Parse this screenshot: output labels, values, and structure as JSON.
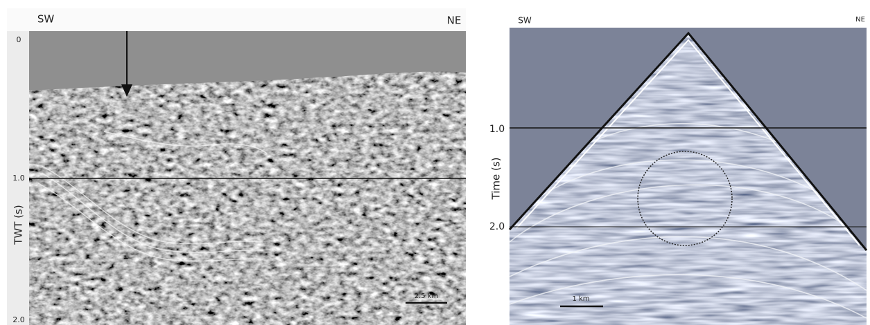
{
  "left_panel": {
    "direction_left": "SW",
    "direction_right": "NE",
    "y_axis_label": "TWT (s)",
    "y_ticks": [
      "0",
      "1.0",
      "2.0"
    ],
    "scale_bar": "2.5 km"
  },
  "right_panel": {
    "direction_left": "SW",
    "direction_right": "NE",
    "y_axis_label": "Time (s)",
    "y_ticks": [
      "1.0",
      "2.0"
    ],
    "scale_bar": "1 km"
  }
}
